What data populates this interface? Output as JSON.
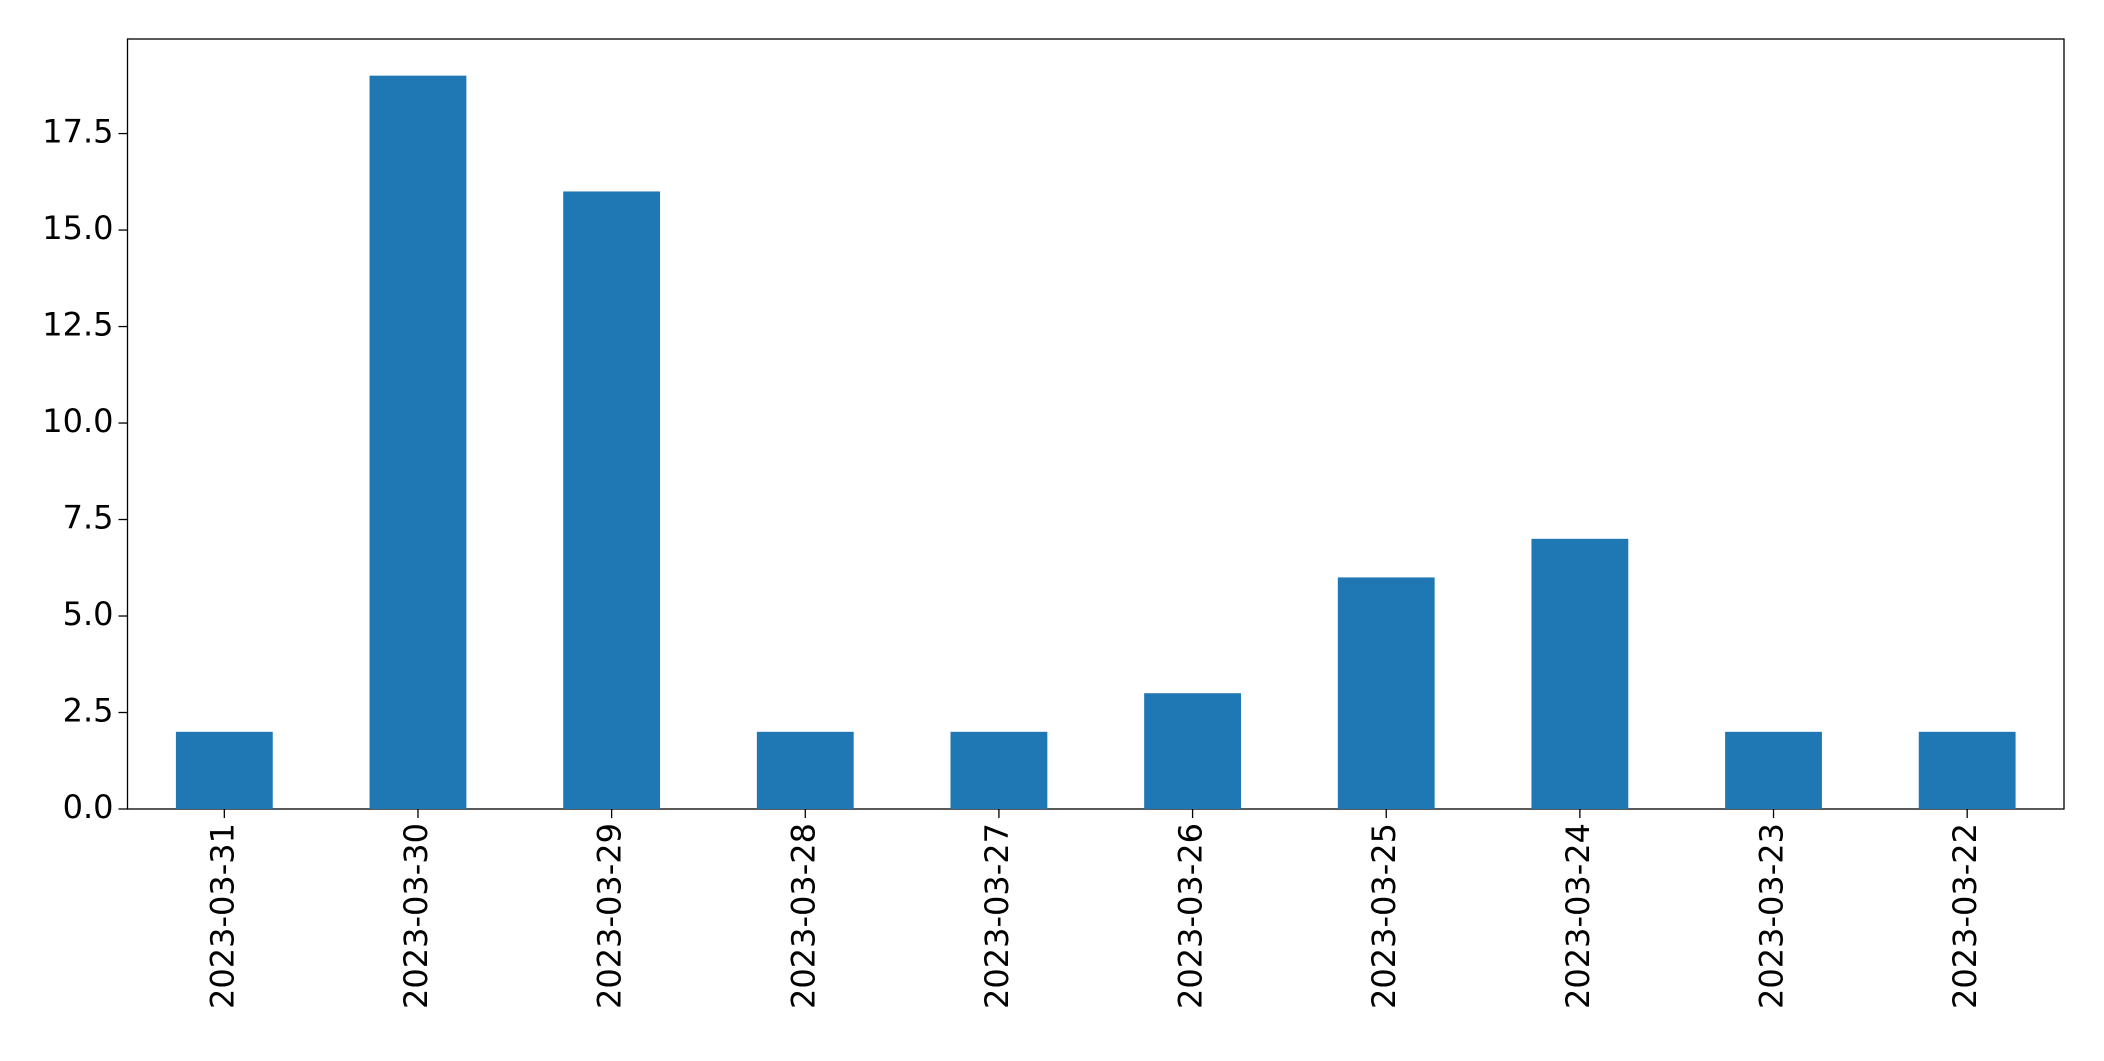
{
  "chart_data": {
    "type": "bar",
    "categories": [
      "2023-03-31",
      "2023-03-30",
      "2023-03-29",
      "2023-03-28",
      "2023-03-27",
      "2023-03-26",
      "2023-03-25",
      "2023-03-24",
      "2023-03-23",
      "2023-03-22"
    ],
    "values": [
      2,
      19,
      16,
      2,
      2,
      3,
      6,
      7,
      2,
      2
    ],
    "color": "#1f77b4",
    "ylim": [
      0,
      19.95
    ],
    "yticks": [
      {
        "value": 0,
        "label": "0.0"
      },
      2.5,
      {
        "value": 5,
        "label": "5.0"
      },
      7.5,
      {
        "value": 10,
        "label": "10.0"
      },
      12.5,
      {
        "value": 15,
        "label": "15.0"
      },
      17.5
    ],
    "grid": false
  }
}
